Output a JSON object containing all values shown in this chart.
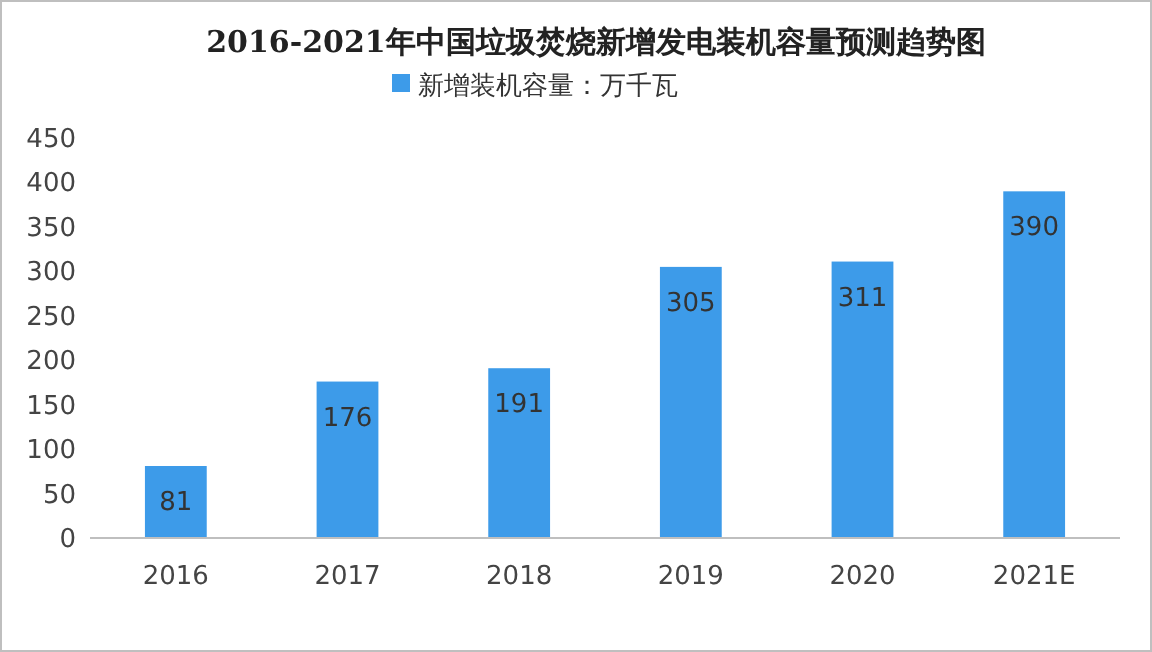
{
  "chart_data": {
    "type": "bar",
    "title": "2016-2021年中国垃圾焚烧新增发电装机容量预测趋势图",
    "categories": [
      "2016",
      "2017",
      "2018",
      "2019",
      "2020",
      "2021E"
    ],
    "series": [
      {
        "name": "新增装机容量：万千瓦",
        "color": "#3d9be9",
        "values": [
          81,
          176,
          191,
          305,
          311,
          390
        ]
      }
    ],
    "ylim": [
      0,
      450
    ],
    "yticks": [
      0,
      50,
      100,
      150,
      200,
      250,
      300,
      350,
      400,
      450
    ],
    "data_labels": true,
    "legend": "top",
    "grid": false
  }
}
